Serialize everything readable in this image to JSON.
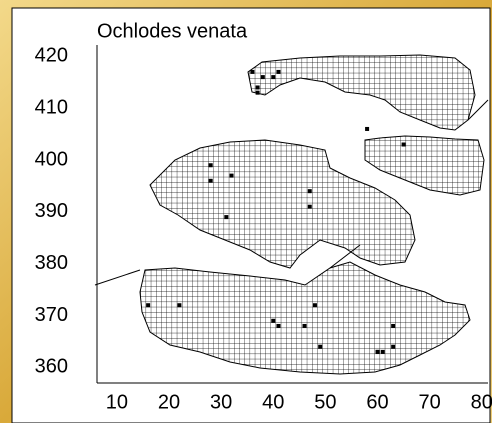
{
  "chart_data": {
    "type": "scatter",
    "title": "Ochlodes venata",
    "color": "#000000",
    "x": [
      16,
      22,
      28,
      28,
      32,
      31,
      36,
      37,
      38,
      40,
      41,
      37,
      58,
      65,
      47,
      47,
      40,
      41,
      46,
      48,
      49,
      60,
      60,
      61,
      63,
      63
    ],
    "y": [
      372,
      372,
      399,
      396,
      397,
      389,
      417,
      414,
      416,
      416,
      417,
      413,
      406,
      403,
      394,
      391,
      369,
      368,
      368,
      372,
      364,
      363,
      363,
      363,
      368,
      364
    ],
    "xlim": [
      6,
      81
    ],
    "ylim": [
      357,
      422
    ],
    "xticks": [
      10,
      20,
      30,
      40,
      50,
      60,
      70,
      80
    ],
    "yticks": [
      360,
      370,
      380,
      390,
      400,
      410,
      420
    ]
  }
}
